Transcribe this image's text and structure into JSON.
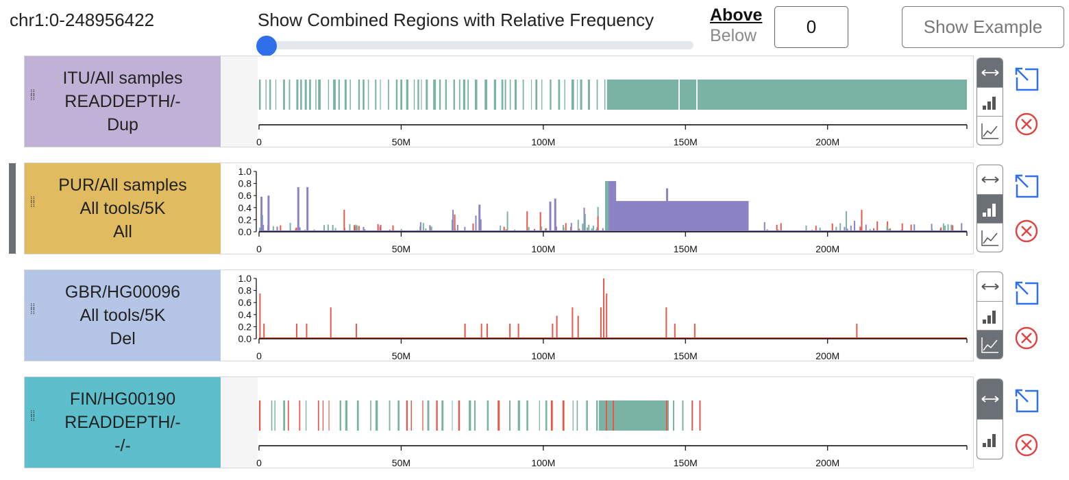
{
  "header": {
    "region": "chr1:0-248956422",
    "slider_label": "Show Combined Regions with Relative Frequency",
    "slider_value": 0,
    "above_label": "Above",
    "below_label": "Below",
    "frequency_value": "0",
    "show_example_label": "Show Example"
  },
  "axis": {
    "ticks": [
      "0",
      "50M",
      "100M",
      "150M",
      "200M"
    ],
    "y_ticks": [
      "1.0",
      "0.8",
      "0.6",
      "0.4",
      "0.2",
      "0.0"
    ]
  },
  "colors": {
    "dup": "#7ab3a3",
    "del": "#e8574a",
    "combined": "#8b83c4",
    "label_itu": "#c0b2d6",
    "label_pur": "#e1bb5f",
    "label_gbr": "#b4c5e5",
    "label_fin": "#5dbfcc",
    "active_control": "#6b6f76",
    "expand_icon": "#2f6fea",
    "close_icon": "#d44"
  },
  "tracks": [
    {
      "line1": "ITU/All samples",
      "line2": "READDEPTH/-",
      "line3": "Dup",
      "mode": "region",
      "active_view": 0
    },
    {
      "line1": "PUR/All samples",
      "line2": "All tools/5K",
      "line3": "All",
      "mode": "bar",
      "active_view": 1
    },
    {
      "line1": "GBR/HG00096",
      "line2": "All tools/5K",
      "line3": "Del",
      "mode": "line",
      "active_view": 2
    },
    {
      "line1": "FIN/HG00190",
      "line2": "READDEPTH/-",
      "line3": "-/-",
      "mode": "region",
      "active_view": 0
    }
  ],
  "icons": {
    "view_region": "arrows-horizontal-icon",
    "view_bar": "bar-chart-icon",
    "view_line": "line-chart-icon",
    "expand": "expand-arrow-icon",
    "remove": "close-circle-icon",
    "drag": "drag-handle-icon"
  }
}
